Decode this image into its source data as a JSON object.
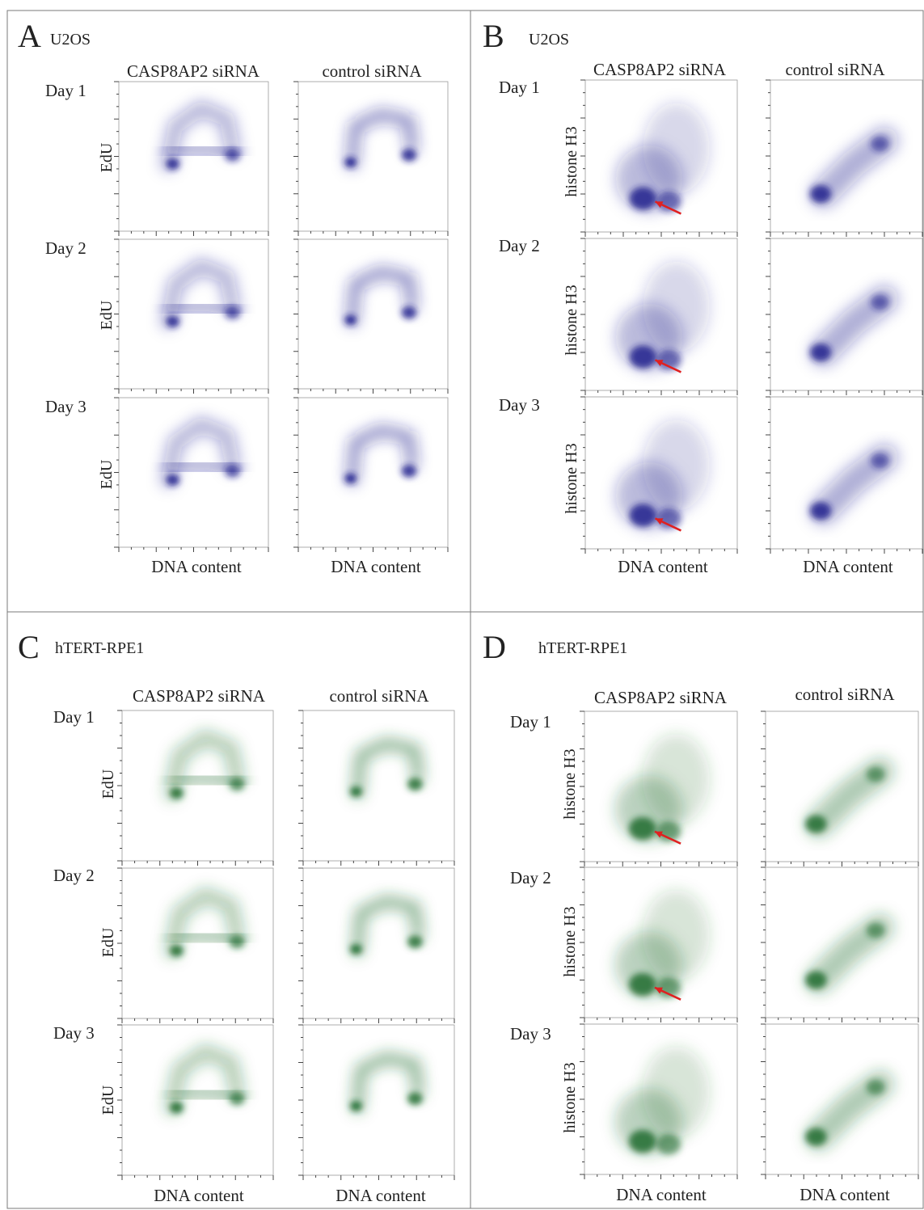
{
  "panels": [
    {
      "letter": "A",
      "cell_line": "U2OS",
      "y_label": "EdU",
      "x_label": "DNA content",
      "color": "#1c1c8c",
      "columns": [
        "CASP8AP2 siRNA",
        "control siRNA"
      ],
      "rows": [
        "Day 1",
        "Day 2",
        "Day 3"
      ]
    },
    {
      "letter": "B",
      "cell_line": "U2OS",
      "y_label": "histone H3",
      "x_label": "DNA content",
      "color": "#1c1c8c",
      "columns": [
        "CASP8AP2 siRNA",
        "control siRNA"
      ],
      "rows": [
        "Day 1",
        "Day 2",
        "Day 3"
      ]
    },
    {
      "letter": "C",
      "cell_line": "hTERT-RPE1",
      "y_label": "EdU",
      "x_label": "DNA content",
      "color": "#1e6b2e",
      "columns": [
        "CASP8AP2 siRNA",
        "control siRNA"
      ],
      "rows": [
        "Day 1",
        "Day 2",
        "Day 3"
      ]
    },
    {
      "letter": "D",
      "cell_line": "hTERT-RPE1",
      "y_label": "histone H3",
      "x_label": "DNA content",
      "color": "#1e6b2e",
      "columns": [
        "CASP8AP2 siRNA",
        "control siRNA"
      ],
      "rows": [
        "Day 1",
        "Day 2",
        "Day 3"
      ]
    }
  ],
  "annotations": {
    "arrow_color": "#e02020"
  }
}
